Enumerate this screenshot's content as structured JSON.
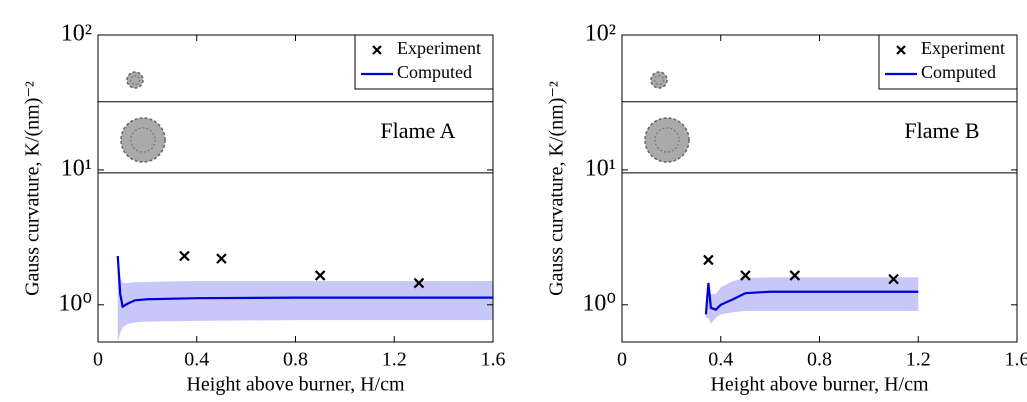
{
  "chart_data": [
    {
      "type": "line",
      "scale": "log",
      "annotation": "Flame A",
      "xlabel": "Height above burner, H/cm",
      "ylabel": "Gauss curvature, K/(nm)⁻²",
      "xlim": [
        0,
        1.6
      ],
      "xticks": [
        0,
        0.4,
        0.8,
        1.2,
        1.6
      ],
      "ylim": [
        0.53,
        100
      ],
      "yticks": [
        {
          "value": 1,
          "label": "10⁰"
        },
        {
          "value": 10,
          "label": "10¹"
        },
        {
          "value": 100,
          "label": "10²"
        }
      ],
      "reference_lines": [
        32,
        9.5
      ],
      "legend": "upper right",
      "band": {
        "color": "#c8c8f8",
        "x": [
          0.08,
          0.09,
          0.1,
          0.12,
          0.15,
          0.2,
          0.4,
          0.8,
          1.2,
          1.6
        ],
        "lower": [
          0.53,
          0.62,
          0.68,
          0.72,
          0.74,
          0.75,
          0.76,
          0.77,
          0.77,
          0.77
        ],
        "upper": [
          2.3,
          1.6,
          1.45,
          1.45,
          1.47,
          1.48,
          1.5,
          1.5,
          1.5,
          1.5
        ]
      },
      "series": [
        {
          "name": "Experiment",
          "color": "#000000",
          "marker": "x",
          "x": [
            0.35,
            0.5,
            0.9,
            1.3
          ],
          "values": [
            2.3,
            2.2,
            1.65,
            1.45
          ]
        },
        {
          "name": "Computed",
          "color": "#0000dd",
          "x": [
            0.08,
            0.09,
            0.1,
            0.12,
            0.15,
            0.2,
            0.4,
            0.8,
            1.2,
            1.6
          ],
          "values": [
            2.3,
            1.2,
            0.97,
            1.02,
            1.08,
            1.1,
            1.12,
            1.13,
            1.13,
            1.13
          ]
        }
      ]
    },
    {
      "type": "line",
      "scale": "log",
      "annotation": "Flame B",
      "xlabel": "Height above burner, H/cm",
      "ylabel": "Gauss curvature, K/(nm)⁻²",
      "xlim": [
        0,
        1.6
      ],
      "xticks": [
        0,
        0.4,
        0.8,
        1.2,
        1.6
      ],
      "ylim": [
        0.53,
        100
      ],
      "yticks": [
        {
          "value": 1,
          "label": "10⁰"
        },
        {
          "value": 10,
          "label": "10¹"
        },
        {
          "value": 100,
          "label": "10²"
        }
      ],
      "reference_lines": [
        32,
        9.5
      ],
      "legend": "upper right",
      "band": {
        "color": "#c8c8f8",
        "x": [
          0.34,
          0.35,
          0.36,
          0.38,
          0.4,
          0.45,
          0.5,
          0.6,
          0.8,
          1.2
        ],
        "lower": [
          0.8,
          0.8,
          0.72,
          0.8,
          0.85,
          0.88,
          0.9,
          0.9,
          0.9,
          0.9
        ],
        "upper": [
          0.9,
          1.5,
          1.2,
          1.2,
          1.35,
          1.5,
          1.58,
          1.6,
          1.6,
          1.6
        ]
      },
      "series": [
        {
          "name": "Experiment",
          "color": "#000000",
          "marker": "x",
          "x": [
            0.35,
            0.5,
            0.7,
            1.1
          ],
          "values": [
            2.15,
            1.65,
            1.65,
            1.55
          ]
        },
        {
          "name": "Computed",
          "color": "#0000dd",
          "x": [
            0.34,
            0.35,
            0.36,
            0.38,
            0.4,
            0.45,
            0.5,
            0.6,
            0.8,
            1.2
          ],
          "values": [
            0.85,
            1.45,
            0.95,
            0.92,
            1.0,
            1.1,
            1.22,
            1.25,
            1.25,
            1.25
          ]
        }
      ]
    }
  ]
}
